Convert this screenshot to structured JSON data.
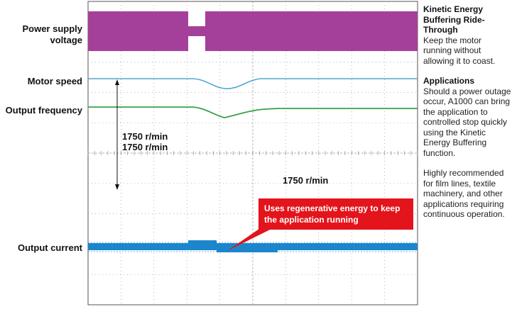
{
  "signal_labels": {
    "power_supply": "Power supply voltage",
    "motor_speed": "Motor speed",
    "output_frequency": "Output frequency",
    "output_current": "Output current"
  },
  "readings": {
    "speed_1": "1750 r/min",
    "speed_2": "1750 r/min",
    "speed_3": "1750 r/min"
  },
  "callout": "Uses regenerative energy to keep the application running",
  "sidebar": {
    "heading": "Kinetic Energy Buffering Ride-Through",
    "subtext": "Keep the motor running without allowing it to coast.",
    "applications_heading": "Applications",
    "applications_text": "Should a power outage occur, A1000 can bring the application to controlled stop quickly using the Kinetic Energy Buffering function.",
    "recommendation": "Highly recommended for film lines, textile machinery, and other applications requiring continuous operation."
  },
  "colors": {
    "power_trace": "#a5409a",
    "speed_trace": "#4fa7d6",
    "frequency_trace": "#3aa04a",
    "current_trace": "#1b86cc",
    "callout_bg": "#e3141b"
  }
}
